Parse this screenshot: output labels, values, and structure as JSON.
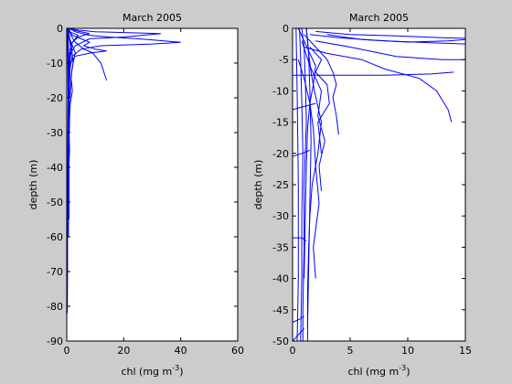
{
  "chart_data": [
    {
      "type": "line",
      "title": "March 2005",
      "xlabel": "chl (mg m",
      "xlabel_superscript": "-3",
      "xlabel_suffix": ")",
      "ylabel": "depth (m)",
      "xlim": [
        0,
        60
      ],
      "ylim": [
        -90,
        0
      ],
      "xticks": [
        0,
        20,
        40,
        60
      ],
      "yticks": [
        0,
        -10,
        -20,
        -30,
        -40,
        -50,
        -60,
        -70,
        -80,
        -90
      ],
      "grid": false,
      "line_color": "#0000ff",
      "series": [
        {
          "points": [
            [
              0.6,
              0
            ],
            [
              1.2,
              -1
            ],
            [
              2.5,
              -1.5
            ],
            [
              4,
              -2
            ],
            [
              3,
              -3
            ],
            [
              2,
              -4
            ],
            [
              1.2,
              -6
            ],
            [
              1,
              -10
            ],
            [
              0.9,
              -20
            ],
            [
              0.8,
              -40
            ],
            [
              0.8,
              -55
            ]
          ]
        },
        {
          "points": [
            [
              1,
              0
            ],
            [
              3,
              -1
            ],
            [
              8,
              -2
            ],
            [
              15,
              -2.5
            ],
            [
              25,
              -3
            ],
            [
              40,
              -4
            ],
            [
              30,
              -4.5
            ],
            [
              12,
              -5
            ],
            [
              5,
              -6
            ],
            [
              2,
              -8
            ],
            [
              1,
              -12
            ],
            [
              0.9,
              -30
            ]
          ]
        },
        {
          "points": [
            [
              0.8,
              0
            ],
            [
              4,
              -0.5
            ],
            [
              10,
              -1
            ],
            [
              20,
              -1.2
            ],
            [
              33,
              -1.5
            ],
            [
              20,
              -2.5
            ],
            [
              8,
              -3
            ],
            [
              3,
              -5
            ],
            [
              1.5,
              -7
            ],
            [
              1,
              -10
            ]
          ]
        },
        {
          "points": [
            [
              0.5,
              0
            ],
            [
              1,
              -1
            ],
            [
              2,
              -2
            ],
            [
              5,
              -3
            ],
            [
              8,
              -4
            ],
            [
              6,
              -5
            ],
            [
              10,
              -6
            ],
            [
              14,
              -6.5
            ],
            [
              9,
              -7
            ],
            [
              3,
              -8
            ],
            [
              1,
              -10
            ]
          ]
        },
        {
          "points": [
            [
              0.6,
              0
            ],
            [
              1.5,
              -2
            ],
            [
              3,
              -4
            ],
            [
              6,
              -6
            ],
            [
              9,
              -7
            ],
            [
              12,
              -10
            ],
            [
              14,
              -15
            ]
          ]
        },
        {
          "points": [
            [
              0.5,
              0
            ],
            [
              0.7,
              -1.5
            ],
            [
              0.9,
              -3
            ],
            [
              1.3,
              -5
            ],
            [
              2,
              -8
            ],
            [
              1.2,
              -11
            ],
            [
              0.9,
              -18
            ],
            [
              0.7,
              -30
            ],
            [
              0.6,
              -50
            ],
            [
              0.6,
              -60
            ]
          ]
        },
        {
          "points": [
            [
              0.4,
              -1
            ],
            [
              0.5,
              -3
            ],
            [
              0.6,
              -6
            ],
            [
              0.5,
              -15
            ],
            [
              0.4,
              -30
            ],
            [
              0.4,
              -48
            ]
          ]
        },
        {
          "points": [
            [
              0.3,
              0
            ],
            [
              0.4,
              -4
            ],
            [
              0.5,
              -9
            ],
            [
              0.7,
              -14
            ],
            [
              0.5,
              -25
            ],
            [
              0.4,
              -40
            ],
            [
              0.3,
              -55
            ]
          ]
        },
        {
          "points": [
            [
              0.5,
              0
            ],
            [
              2,
              -0.5
            ],
            [
              5,
              -1
            ],
            [
              8,
              -1.5
            ],
            [
              4,
              -2.5
            ],
            [
              2,
              -4
            ],
            [
              1,
              -7
            ],
            [
              0.7,
              -12
            ],
            [
              0.6,
              -25
            ]
          ]
        },
        {
          "points": [
            [
              0.6,
              -1
            ],
            [
              1,
              -3
            ],
            [
              2,
              -5
            ],
            [
              3,
              -7
            ],
            [
              2.5,
              -9
            ],
            [
              1.8,
              -12
            ],
            [
              1.5,
              -15
            ],
            [
              1.2,
              -20
            ]
          ]
        },
        {
          "points": [
            [
              0.3,
              0
            ],
            [
              0.4,
              -10
            ],
            [
              0.5,
              -25
            ],
            [
              0.4,
              -45
            ],
            [
              0.3,
              -60
            ],
            [
              0.3,
              -70
            ],
            [
              0.2,
              -82
            ]
          ]
        },
        {
          "points": [
            [
              0.8,
              -2
            ],
            [
              1.6,
              -5
            ],
            [
              2.2,
              -10
            ],
            [
              1.5,
              -14
            ],
            [
              2,
              -18
            ],
            [
              1.2,
              -22
            ],
            [
              0.8,
              -30
            ],
            [
              1,
              -35
            ],
            [
              0.6,
              -42
            ]
          ]
        }
      ]
    },
    {
      "type": "line",
      "title": "March 2005",
      "xlabel": "chl (mg m",
      "xlabel_superscript": "-3",
      "xlabel_suffix": ")",
      "ylabel": "depth (m)",
      "xlim": [
        0,
        15
      ],
      "ylim": [
        -50,
        0
      ],
      "xticks": [
        0,
        5,
        10,
        15
      ],
      "yticks": [
        0,
        -5,
        -10,
        -15,
        -20,
        -25,
        -30,
        -35,
        -40,
        -45,
        -50
      ],
      "grid": false,
      "line_color": "#0000ff",
      "series": [
        {
          "points": [
            [
              0.8,
              0
            ],
            [
              1,
              -3
            ],
            [
              1.1,
              -8
            ],
            [
              1.2,
              -15
            ],
            [
              1,
              -25
            ],
            [
              1,
              -35
            ],
            [
              0.9,
              -45
            ],
            [
              0.9,
              -50
            ]
          ]
        },
        {
          "points": [
            [
              0.6,
              0
            ],
            [
              0.7,
              -5
            ],
            [
              0.8,
              -12
            ],
            [
              0.9,
              -20
            ],
            [
              0.8,
              -30
            ],
            [
              0.8,
              -40
            ],
            [
              0.7,
              -50
            ]
          ]
        },
        {
          "points": [
            [
              1.2,
              0
            ],
            [
              1.4,
              -4
            ],
            [
              1.5,
              -10
            ],
            [
              1.6,
              -18
            ],
            [
              1.5,
              -28
            ],
            [
              1.4,
              -38
            ],
            [
              1.3,
              -48
            ]
          ]
        },
        {
          "points": [
            [
              0.3,
              0
            ],
            [
              0.4,
              -10
            ],
            [
              0.5,
              -25
            ],
            [
              0.5,
              -40
            ],
            [
              0.4,
              -50
            ]
          ]
        },
        {
          "points": [
            [
              2,
              -0.5
            ],
            [
              5,
              -1
            ],
            [
              9,
              -1.2
            ],
            [
              13,
              -1.5
            ],
            [
              15,
              -1.6
            ]
          ]
        },
        {
          "points": [
            [
              1.5,
              -1
            ],
            [
              4,
              -1.5
            ],
            [
              8,
              -2
            ],
            [
              12,
              -2.3
            ],
            [
              15,
              -2.5
            ]
          ]
        },
        {
          "points": [
            [
              2,
              -2
            ],
            [
              5,
              -3
            ],
            [
              9,
              -4.5
            ],
            [
              13,
              -5
            ],
            [
              15,
              -5
            ]
          ]
        },
        {
          "points": [
            [
              0,
              -7.5
            ],
            [
              3,
              -7.5
            ],
            [
              8,
              -7.5
            ],
            [
              12,
              -7.3
            ],
            [
              14,
              -7
            ]
          ]
        },
        {
          "points": [
            [
              1,
              -3
            ],
            [
              3,
              -4
            ],
            [
              6,
              -5
            ],
            [
              8,
              -6.5
            ],
            [
              11,
              -8
            ],
            [
              12.5,
              -10
            ],
            [
              13.5,
              -13
            ],
            [
              13.8,
              -15
            ]
          ]
        },
        {
          "points": [
            [
              1,
              -1
            ],
            [
              2,
              -3
            ],
            [
              3,
              -5
            ],
            [
              3.5,
              -7
            ],
            [
              3.8,
              -9
            ],
            [
              3.5,
              -11
            ],
            [
              3.8,
              -14
            ],
            [
              4,
              -17
            ]
          ]
        },
        {
          "points": [
            [
              0.8,
              -2
            ],
            [
              1.5,
              -6
            ],
            [
              2.5,
              -10
            ],
            [
              2.2,
              -14
            ],
            [
              2.8,
              -18
            ],
            [
              2.3,
              -22
            ],
            [
              2.5,
              -26
            ]
          ]
        },
        {
          "points": [
            [
              0.5,
              -5
            ],
            [
              1,
              -8
            ],
            [
              1.5,
              -12
            ],
            [
              1.8,
              -16
            ],
            [
              2,
              -22
            ],
            [
              2.3,
              -28
            ],
            [
              1.8,
              -35
            ],
            [
              2,
              -40
            ]
          ]
        },
        {
          "points": [
            [
              1.5,
              -3
            ],
            [
              2.5,
              -5
            ],
            [
              2,
              -7
            ],
            [
              3,
              -9
            ],
            [
              3.2,
              -12
            ],
            [
              2.2,
              -15
            ],
            [
              2.5,
              -20
            ]
          ]
        },
        {
          "points": [
            [
              0.5,
              0
            ],
            [
              1,
              -2
            ],
            [
              1.5,
              -4
            ],
            [
              2,
              -6
            ],
            [
              1.8,
              -9
            ],
            [
              1.5,
              -12
            ],
            [
              1.3,
              -16
            ],
            [
              1.2,
              -22
            ],
            [
              1.1,
              -30
            ],
            [
              1,
              -40
            ]
          ]
        },
        {
          "points": [
            [
              0,
              -13
            ],
            [
              1,
              -12.5
            ],
            [
              2,
              -12
            ]
          ]
        },
        {
          "points": [
            [
              0,
              -20.5
            ],
            [
              0.8,
              -20
            ],
            [
              1.5,
              -19.5
            ]
          ]
        },
        {
          "points": [
            [
              0,
              -33.5
            ],
            [
              0.8,
              -33.5
            ],
            [
              1.2,
              -34
            ]
          ]
        },
        {
          "points": [
            [
              0,
              -47
            ],
            [
              0.6,
              -46.5
            ],
            [
              1,
              -46
            ]
          ]
        },
        {
          "points": [
            [
              0,
              -50
            ],
            [
              0.5,
              -49
            ],
            [
              1,
              -48
            ]
          ]
        },
        {
          "points": [
            [
              1.2,
              0
            ],
            [
              1.3,
              -2
            ],
            [
              1.4,
              -4
            ],
            [
              1.6,
              -7
            ],
            [
              1.9,
              -10
            ],
            [
              2.5,
              -15
            ],
            [
              2.2,
              -20
            ],
            [
              1.7,
              -25
            ],
            [
              1.5,
              -30
            ],
            [
              1.4,
              -35
            ],
            [
              1.3,
              -42
            ],
            [
              1.3,
              -50
            ]
          ]
        },
        {
          "points": [
            [
              3,
              -1
            ],
            [
              6,
              -1.8
            ],
            [
              10,
              -2.2
            ],
            [
              13.5,
              -2
            ],
            [
              15,
              -1.8
            ]
          ]
        }
      ]
    }
  ]
}
